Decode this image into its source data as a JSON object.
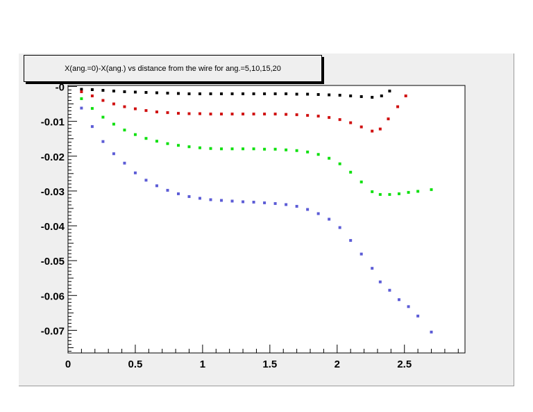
{
  "chart_data": {
    "type": "scatter",
    "title": "X(ang.=0)-X(ang.) vs distance from the wire for ang.=5,10,15,20",
    "xlabel": "",
    "ylabel": "",
    "xlim": [
      0,
      2.95
    ],
    "ylim": [
      -0.0765,
      0.0003
    ],
    "x_ticks": [
      {
        "value": 0,
        "label": "0"
      },
      {
        "value": 0.5,
        "label": "0.5"
      },
      {
        "value": 1,
        "label": "1"
      },
      {
        "value": 1.5,
        "label": "1.5"
      },
      {
        "value": 2,
        "label": "2"
      },
      {
        "value": 2.5,
        "label": "2.5"
      }
    ],
    "y_ticks": [
      {
        "value": 0,
        "label": "-0"
      },
      {
        "value": -0.01,
        "label": "-0.01"
      },
      {
        "value": -0.02,
        "label": "-0.02"
      },
      {
        "value": -0.03,
        "label": "-0.03"
      },
      {
        "value": -0.04,
        "label": "-0.04"
      },
      {
        "value": -0.05,
        "label": "-0.05"
      },
      {
        "value": -0.06,
        "label": "-0.06"
      },
      {
        "value": -0.07,
        "label": "-0.07"
      }
    ],
    "grid": false,
    "series": [
      {
        "color": "#000000",
        "x": [
          0.1,
          0.18,
          0.26,
          0.34,
          0.42,
          0.5,
          0.58,
          0.66,
          0.74,
          0.82,
          0.9,
          0.98,
          1.06,
          1.14,
          1.22,
          1.3,
          1.38,
          1.46,
          1.54,
          1.62,
          1.7,
          1.78,
          1.86,
          1.94,
          2.02,
          2.1,
          2.18,
          2.26,
          2.33,
          2.39
        ],
        "y": [
          -0.0008,
          -0.0009,
          -0.0011,
          -0.0013,
          -0.0015,
          -0.0016,
          -0.0017,
          -0.0018,
          -0.0019,
          -0.002,
          -0.0021,
          -0.0021,
          -0.0021,
          -0.0021,
          -0.0021,
          -0.0021,
          -0.0021,
          -0.0021,
          -0.0021,
          -0.0021,
          -0.0022,
          -0.0022,
          -0.0023,
          -0.0024,
          -0.0025,
          -0.0027,
          -0.0029,
          -0.0031,
          -0.0027,
          -0.0013
        ]
      },
      {
        "color": "#d01010",
        "x": [
          0.1,
          0.18,
          0.26,
          0.34,
          0.42,
          0.5,
          0.58,
          0.66,
          0.74,
          0.82,
          0.9,
          0.98,
          1.06,
          1.14,
          1.22,
          1.3,
          1.38,
          1.46,
          1.54,
          1.62,
          1.7,
          1.78,
          1.86,
          1.94,
          2.02,
          2.1,
          2.18,
          2.26,
          2.32,
          2.38,
          2.45,
          2.51
        ],
        "y": [
          -0.0015,
          -0.0027,
          -0.004,
          -0.005,
          -0.0058,
          -0.0064,
          -0.0069,
          -0.0073,
          -0.0075,
          -0.0077,
          -0.0078,
          -0.0078,
          -0.0079,
          -0.0079,
          -0.0079,
          -0.0079,
          -0.0079,
          -0.0079,
          -0.0079,
          -0.008,
          -0.0081,
          -0.0083,
          -0.0085,
          -0.0089,
          -0.0095,
          -0.0104,
          -0.0116,
          -0.0128,
          -0.0122,
          -0.0093,
          -0.0058,
          -0.0027
        ]
      },
      {
        "color": "#10e010",
        "x": [
          0.1,
          0.18,
          0.26,
          0.34,
          0.42,
          0.5,
          0.58,
          0.66,
          0.74,
          0.82,
          0.9,
          0.98,
          1.06,
          1.14,
          1.22,
          1.3,
          1.38,
          1.46,
          1.54,
          1.62,
          1.7,
          1.78,
          1.86,
          1.94,
          2.02,
          2.1,
          2.18,
          2.26,
          2.32,
          2.39,
          2.46,
          2.53,
          2.6,
          2.7
        ],
        "y": [
          -0.0035,
          -0.0063,
          -0.0088,
          -0.0108,
          -0.0125,
          -0.0138,
          -0.0149,
          -0.0157,
          -0.0164,
          -0.0169,
          -0.0173,
          -0.0176,
          -0.0178,
          -0.0179,
          -0.0179,
          -0.0179,
          -0.0179,
          -0.018,
          -0.018,
          -0.0182,
          -0.0184,
          -0.0188,
          -0.0195,
          -0.0206,
          -0.0222,
          -0.0246,
          -0.0274,
          -0.0302,
          -0.031,
          -0.031,
          -0.0308,
          -0.0304,
          -0.0301,
          -0.0296
        ]
      },
      {
        "color": "#5c5cd6",
        "x": [
          0.1,
          0.18,
          0.26,
          0.34,
          0.42,
          0.5,
          0.58,
          0.66,
          0.74,
          0.82,
          0.9,
          0.98,
          1.06,
          1.14,
          1.22,
          1.3,
          1.38,
          1.46,
          1.54,
          1.62,
          1.7,
          1.78,
          1.86,
          1.94,
          2.02,
          2.1,
          2.18,
          2.26,
          2.32,
          2.39,
          2.46,
          2.53,
          2.6,
          2.7
        ],
        "y": [
          -0.0062,
          -0.0115,
          -0.0158,
          -0.0193,
          -0.022,
          -0.0248,
          -0.0269,
          -0.0285,
          -0.0298,
          -0.0308,
          -0.0316,
          -0.0321,
          -0.0325,
          -0.0327,
          -0.0329,
          -0.0331,
          -0.0332,
          -0.0334,
          -0.0336,
          -0.0339,
          -0.0344,
          -0.0353,
          -0.0365,
          -0.0381,
          -0.0405,
          -0.0442,
          -0.0481,
          -0.0522,
          -0.0561,
          -0.0585,
          -0.0612,
          -0.0632,
          -0.0659,
          -0.0705
        ]
      }
    ]
  }
}
